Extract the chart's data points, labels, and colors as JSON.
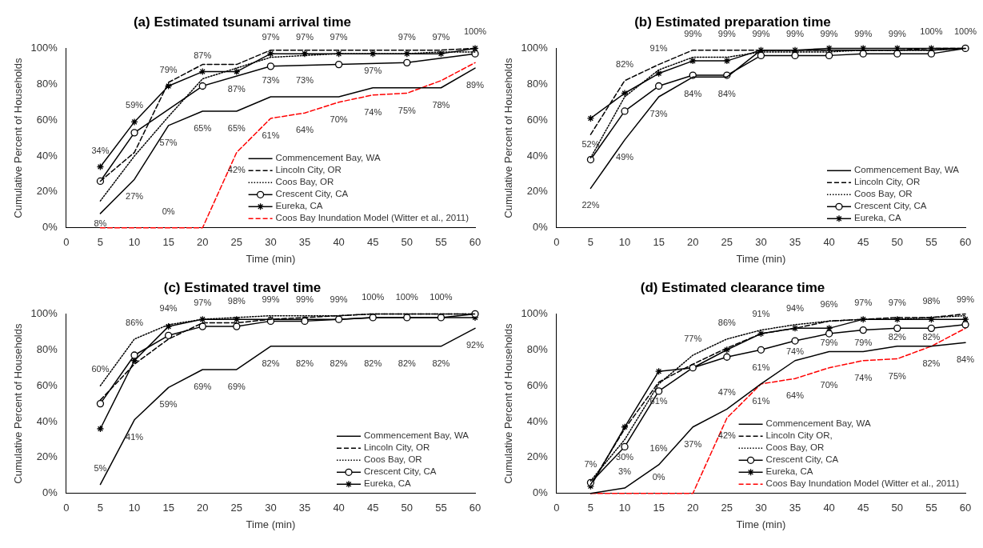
{
  "chart_data": [
    {
      "type": "line",
      "title": "(a) Estimated tsunami arrival time",
      "xlabel": "Time (min)",
      "ylabel": "Cumulative Percent of Households",
      "x": [
        5,
        10,
        15,
        20,
        25,
        30,
        35,
        40,
        45,
        50,
        55,
        60
      ],
      "xlim": [
        0,
        60
      ],
      "xticks": [
        0,
        5,
        10,
        15,
        20,
        25,
        30,
        35,
        40,
        45,
        50,
        55,
        60
      ],
      "ylim": [
        0,
        100
      ],
      "yticks": [
        {
          "value": 0,
          "label": "0%"
        },
        {
          "value": 20,
          "label": "20%"
        },
        {
          "value": 40,
          "label": "40%"
        },
        {
          "value": 60,
          "label": "60%"
        },
        {
          "value": 80,
          "label": "80%"
        },
        {
          "value": 100,
          "label": "100%"
        }
      ],
      "grid": false,
      "legend": "bottom right",
      "series": [
        {
          "name": "Commencement Bay, WA",
          "color": "#000000",
          "line_style": "solid",
          "marker": "none",
          "values": [
            8,
            27,
            57,
            65,
            65,
            73,
            73,
            73,
            78,
            78,
            78,
            89
          ],
          "value_labels": [
            "8%",
            "27%",
            "57%",
            "65%",
            "65%",
            "73%",
            "73%",
            null,
            null,
            null,
            "78%",
            "89%"
          ]
        },
        {
          "name": "Lincoln City, OR",
          "color": "#000000",
          "line_style": "dashed",
          "marker": "none",
          "values": [
            26,
            42,
            81,
            91,
            91,
            99,
            99,
            99,
            99,
            99,
            99,
            100
          ]
        },
        {
          "name": "Coos Bay, OR",
          "color": "#000000",
          "line_style": "dotted",
          "marker": "none",
          "values": [
            15,
            40,
            62,
            83,
            89,
            95,
            96,
            97,
            97,
            97,
            98,
            98
          ]
        },
        {
          "name": "Crescent City, CA",
          "color": "#000000",
          "line_style": "solid",
          "marker": "circle",
          "x": [
            5,
            10,
            20,
            30,
            40,
            50,
            60
          ],
          "values": [
            26,
            53,
            79,
            90,
            91,
            92,
            97
          ]
        },
        {
          "name": "Eureka, CA",
          "color": "#000000",
          "line_style": "solid",
          "marker": "cross",
          "values": [
            34,
            59,
            79,
            87,
            87,
            97,
            97,
            97,
            97,
            97,
            97,
            100
          ],
          "value_labels": [
            "34%",
            "59%",
            "79%",
            "87%",
            "87%",
            "97%",
            "97%",
            "97%",
            "97%",
            "97%",
            "97%",
            "100%"
          ]
        },
        {
          "name": "Coos Bay Inundation Model (Witter et al., 2011)",
          "color": "#ff0000",
          "line_style": "dashed",
          "marker": "none",
          "values": [
            0,
            0,
            0,
            0,
            42,
            61,
            64,
            70,
            74,
            75,
            82,
            92
          ],
          "value_labels": [
            null,
            null,
            "0%",
            null,
            "42%",
            "61%",
            "64%",
            "70%",
            "74%",
            "75%",
            null,
            null
          ]
        }
      ]
    },
    {
      "type": "line",
      "title": "(b) Estimated preparation time",
      "xlabel": "Time (min)",
      "ylabel": "Cumulative Percent of Households",
      "x": [
        5,
        10,
        15,
        20,
        25,
        30,
        35,
        40,
        45,
        50,
        55,
        60
      ],
      "xlim": [
        0,
        60
      ],
      "xticks": [
        0,
        5,
        10,
        15,
        20,
        25,
        30,
        35,
        40,
        45,
        50,
        55,
        60
      ],
      "ylim": [
        0,
        100
      ],
      "yticks": [
        {
          "value": 0,
          "label": "0%"
        },
        {
          "value": 20,
          "label": "20%"
        },
        {
          "value": 40,
          "label": "40%"
        },
        {
          "value": 60,
          "label": "60%"
        },
        {
          "value": 80,
          "label": "80%"
        },
        {
          "value": 100,
          "label": "100%"
        }
      ],
      "grid": false,
      "legend": "bottom right",
      "series": [
        {
          "name": "Commencement Bay, WA",
          "color": "#000000",
          "line_style": "solid",
          "marker": "none",
          "values": [
            22,
            49,
            73,
            84,
            84,
            99,
            99,
            99,
            99,
            99,
            99,
            100
          ],
          "value_labels": [
            "22%",
            "49%",
            "73%",
            "84%",
            "84%",
            null,
            null,
            null,
            null,
            null,
            null,
            null
          ]
        },
        {
          "name": "Lincoln City, OR",
          "color": "#000000",
          "line_style": "dashed",
          "marker": "none",
          "values": [
            52,
            82,
            91,
            99,
            99,
            99,
            99,
            99,
            99,
            99,
            100,
            100
          ],
          "value_labels": [
            "52%",
            "82%",
            "91%",
            "99%",
            "99%",
            "99%",
            "99%",
            "99%",
            "99%",
            "99%",
            "100%",
            "100%"
          ]
        },
        {
          "name": "Coos Bay, OR",
          "color": "#000000",
          "line_style": "dotted",
          "marker": "none",
          "values": [
            39,
            73,
            88,
            95,
            95,
            98,
            98,
            98,
            99,
            99,
            99,
            100
          ]
        },
        {
          "name": "Crescent City, CA",
          "color": "#000000",
          "line_style": "solid",
          "marker": "circle",
          "values": [
            38,
            65,
            79,
            85,
            85,
            96,
            96,
            96,
            97,
            97,
            97,
            100
          ]
        },
        {
          "name": "Eureka, CA",
          "color": "#000000",
          "line_style": "solid",
          "marker": "cross",
          "values": [
            61,
            75,
            86,
            93,
            93,
            99,
            99,
            100,
            100,
            100,
            100,
            100
          ]
        }
      ]
    },
    {
      "type": "line",
      "title": "(c) Estimated travel time",
      "xlabel": "Time (min)",
      "ylabel": "Cumulative Percent of Households",
      "x": [
        5,
        10,
        15,
        20,
        25,
        30,
        35,
        40,
        45,
        50,
        55,
        60
      ],
      "xlim": [
        0,
        60
      ],
      "xticks": [
        0,
        5,
        10,
        15,
        20,
        25,
        30,
        35,
        40,
        45,
        50,
        55,
        60
      ],
      "ylim": [
        0,
        100
      ],
      "yticks": [
        {
          "value": 0,
          "label": "0%"
        },
        {
          "value": 20,
          "label": "20%"
        },
        {
          "value": 40,
          "label": "40%"
        },
        {
          "value": 60,
          "label": "60%"
        },
        {
          "value": 80,
          "label": "80%"
        },
        {
          "value": 100,
          "label": "100%"
        }
      ],
      "grid": false,
      "legend": "bottom right",
      "series": [
        {
          "name": "Commencement Bay, WA",
          "color": "#000000",
          "line_style": "solid",
          "marker": "none",
          "values": [
            5,
            41,
            59,
            69,
            69,
            82,
            82,
            82,
            82,
            82,
            82,
            92
          ],
          "value_labels": [
            "5%",
            "41%",
            "59%",
            "69%",
            "69%",
            "82%",
            "82%",
            "82%",
            "82%",
            "82%",
            "82%",
            "92%"
          ]
        },
        {
          "name": "Lincoln City, OR",
          "color": "#000000",
          "line_style": "dashed",
          "marker": "none",
          "values": [
            52,
            72,
            86,
            95,
            95,
            97,
            98,
            99,
            100,
            100,
            100,
            100
          ]
        },
        {
          "name": "Coos Bay, OR",
          "color": "#000000",
          "line_style": "dotted",
          "marker": "none",
          "values": [
            60,
            86,
            94,
            97,
            98,
            99,
            99,
            99,
            100,
            100,
            100,
            100
          ],
          "value_labels": [
            "60%",
            "86%",
            "94%",
            "97%",
            "98%",
            "99%",
            "99%",
            "99%",
            "100%",
            "100%",
            "100%",
            null
          ]
        },
        {
          "name": "Crescent City, CA",
          "color": "#000000",
          "line_style": "solid",
          "marker": "circle",
          "values": [
            50,
            77,
            88,
            93,
            93,
            96,
            96,
            97,
            98,
            98,
            98,
            100
          ]
        },
        {
          "name": "Eureka, CA",
          "color": "#000000",
          "line_style": "solid",
          "marker": "cross",
          "values": [
            36,
            74,
            93,
            97,
            97,
            97,
            97,
            97,
            98,
            98,
            98,
            98
          ]
        }
      ]
    },
    {
      "type": "line",
      "title": "(d) Estimated clearance time",
      "xlabel": "Time (min)",
      "ylabel": "Cumulative Percent of Households",
      "x": [
        5,
        10,
        15,
        20,
        25,
        30,
        35,
        40,
        45,
        50,
        55,
        60
      ],
      "xlim": [
        0,
        60
      ],
      "xticks": [
        0,
        5,
        10,
        15,
        20,
        25,
        30,
        35,
        40,
        45,
        50,
        55,
        60
      ],
      "ylim": [
        0,
        100
      ],
      "yticks": [
        {
          "value": 0,
          "label": "0%"
        },
        {
          "value": 20,
          "label": "20%"
        },
        {
          "value": 40,
          "label": "40%"
        },
        {
          "value": 60,
          "label": "60%"
        },
        {
          "value": 80,
          "label": "80%"
        },
        {
          "value": 100,
          "label": "100%"
        }
      ],
      "grid": false,
      "legend": "bottom right",
      "series": [
        {
          "name": "Commencement Bay, WA",
          "color": "#000000",
          "line_style": "solid",
          "marker": "none",
          "values": [
            0,
            3,
            16,
            37,
            47,
            61,
            74,
            79,
            79,
            82,
            82,
            84
          ],
          "value_labels": [
            null,
            "3%",
            "16%",
            "37%",
            "47%",
            "61%",
            "74%",
            "79%",
            "79%",
            "82%",
            "82%",
            "84%"
          ]
        },
        {
          "name": "Lincoln City OR,",
          "color": "#000000",
          "line_style": "dashed",
          "marker": "none",
          "values": [
            5,
            36,
            62,
            72,
            81,
            89,
            92,
            96,
            97,
            98,
            98,
            100
          ]
        },
        {
          "name": "Coos Bay, OR",
          "color": "#000000",
          "line_style": "dotted",
          "marker": "none",
          "values": [
            7,
            30,
            61,
            77,
            86,
            91,
            94,
            96,
            97,
            97,
            98,
            99
          ],
          "value_labels": [
            "7%",
            "30%",
            "61%",
            "77%",
            "86%",
            "91%",
            "94%",
            "96%",
            "97%",
            "97%",
            "98%",
            "99%"
          ]
        },
        {
          "name": "Crescent City, CA",
          "color": "#000000",
          "line_style": "solid",
          "marker": "circle",
          "values": [
            6,
            26,
            57,
            70,
            76,
            80,
            85,
            89,
            91,
            92,
            92,
            94
          ]
        },
        {
          "name": "Eureka, CA",
          "color": "#000000",
          "line_style": "solid",
          "marker": "cross",
          "values": [
            4,
            37,
            68,
            70,
            80,
            89,
            92,
            92,
            97,
            97,
            97,
            97
          ]
        },
        {
          "name": "Coos Bay Inundation Model (Witter et al., 2011)",
          "color": "#ff0000",
          "line_style": "dashed",
          "marker": "none",
          "values": [
            0,
            0,
            0,
            0,
            42,
            61,
            64,
            70,
            74,
            75,
            82,
            92
          ],
          "value_labels": [
            null,
            null,
            "0%",
            null,
            "42%",
            "61%",
            "64%",
            "70%",
            "74%",
            "75%",
            "82%",
            null
          ]
        }
      ]
    }
  ]
}
